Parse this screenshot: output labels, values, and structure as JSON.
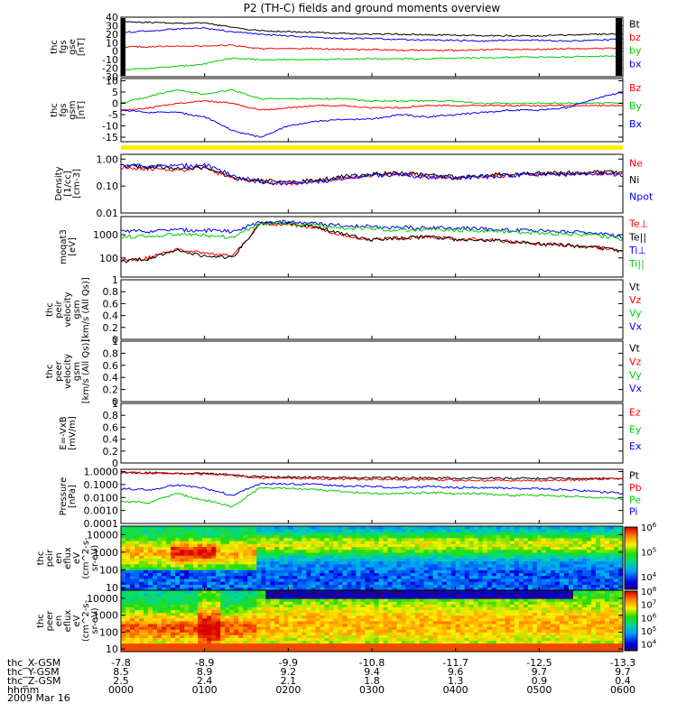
{
  "title": "P2 (TH-C) fields and ground moments overview",
  "chart_data": [
    {
      "type": "line",
      "id": "fgs_gse",
      "ylabel_lines": [
        "thc",
        "fgs",
        "gse",
        "[nT]"
      ],
      "ylim": [
        -30,
        40
      ],
      "yticks": [
        40,
        30,
        20,
        10,
        0,
        -10,
        -20,
        -30
      ],
      "legend": [
        {
          "name": "Bt",
          "color": "#000000"
        },
        {
          "name": "bz",
          "color": "#ff0000"
        },
        {
          "name": "by",
          "color": "#00cc00"
        },
        {
          "name": "bx",
          "color": "#0000ff"
        }
      ],
      "series": [
        {
          "name": "Bt",
          "color": "#000000",
          "values": [
            35,
            34,
            33,
            33,
            28,
            24,
            23,
            22,
            21,
            20,
            20,
            19,
            19,
            18,
            18,
            18,
            19,
            20,
            20
          ]
        },
        {
          "name": "bz",
          "color": "#ff0000",
          "values": [
            5,
            5,
            6,
            6,
            7,
            3,
            3,
            3,
            2,
            2,
            1,
            1,
            1,
            2,
            2,
            2,
            3,
            3,
            3
          ]
        },
        {
          "name": "by",
          "color": "#00cc00",
          "values": [
            -22,
            -20,
            -18,
            -15,
            -8,
            -10,
            -10,
            -10,
            -9,
            -9,
            -9,
            -9,
            -8,
            -8,
            -7,
            -7,
            -7,
            -6,
            -6
          ]
        },
        {
          "name": "bx",
          "color": "#0000ff",
          "values": [
            22,
            24,
            26,
            27,
            23,
            20,
            18,
            16,
            15,
            15,
            14,
            13,
            13,
            12,
            13,
            13,
            12,
            13,
            14
          ]
        }
      ]
    },
    {
      "type": "line",
      "id": "fgs_gsm",
      "ylabel_lines": [
        "thc",
        "fgs",
        "gsm",
        "[nT]"
      ],
      "ylim": [
        -17,
        11
      ],
      "yticks": [
        10,
        5,
        0,
        -5,
        -10,
        -15
      ],
      "legend": [
        {
          "name": "Bz",
          "color": "#ff0000"
        },
        {
          "name": "By",
          "color": "#00cc00"
        },
        {
          "name": "Bx",
          "color": "#0000ff"
        }
      ],
      "series": [
        {
          "name": "Bz",
          "color": "#ff0000",
          "values": [
            -3,
            -2,
            0,
            1,
            0,
            -3,
            -2,
            -1,
            -1,
            -2,
            -2,
            -1,
            -1,
            -1,
            -1,
            -1,
            -1,
            -1,
            -1
          ]
        },
        {
          "name": "By",
          "color": "#00cc00",
          "values": [
            0,
            3,
            6,
            4,
            6,
            2,
            2,
            2,
            2,
            1,
            1,
            1,
            1,
            0,
            0,
            0,
            0,
            0,
            0
          ]
        },
        {
          "name": "Bx",
          "color": "#0000ff",
          "values": [
            -3,
            -4,
            -4,
            -6,
            -12,
            -15,
            -10,
            -8,
            -7,
            -7,
            -5,
            -6,
            -5,
            -4,
            -3,
            -3,
            -2,
            2,
            5
          ]
        }
      ]
    },
    {
      "type": "line",
      "id": "density",
      "yscale": "log",
      "ylabel_lines": [
        "Density",
        "[1/cc]",
        "[cm-3]"
      ],
      "ylim": [
        0.01,
        1.5
      ],
      "yticks": [
        1.0,
        0.1,
        0.01
      ],
      "ytick_labels": [
        "1.00",
        "0.10",
        "0.01"
      ],
      "legend": [
        {
          "name": "Ne",
          "color": "#ff0000"
        },
        {
          "name": "Ni",
          "color": "#000000"
        },
        {
          "name": "Npot",
          "color": "#0000ff"
        }
      ],
      "series": [
        {
          "name": "Ne",
          "color": "#ff0000",
          "values": [
            0.5,
            0.45,
            0.4,
            0.45,
            0.2,
            0.15,
            0.12,
            0.15,
            0.2,
            0.25,
            0.28,
            0.22,
            0.2,
            0.22,
            0.25,
            0.28,
            0.28,
            0.3,
            0.28
          ]
        },
        {
          "name": "Ni",
          "color": "#000000",
          "values": [
            0.55,
            0.5,
            0.45,
            0.5,
            0.2,
            0.16,
            0.14,
            0.16,
            0.22,
            0.27,
            0.3,
            0.25,
            0.22,
            0.25,
            0.27,
            0.3,
            0.3,
            0.32,
            0.3
          ]
        },
        {
          "name": "Npot",
          "color": "#0000ff",
          "values": [
            0.6,
            0.55,
            0.55,
            0.6,
            0.25,
            0.14,
            0.12,
            0.14,
            0.2,
            0.25,
            0.27,
            0.22,
            0.2,
            0.22,
            0.25,
            0.27,
            0.27,
            0.28,
            0.26
          ]
        }
      ]
    },
    {
      "type": "line",
      "id": "temperature",
      "yscale": "log",
      "ylabel_lines": [
        "moqat3",
        "[eV]"
      ],
      "ylim": [
        15,
        6000
      ],
      "yticks": [
        1000,
        100
      ],
      "ytick_labels": [
        "1000",
        "100"
      ],
      "legend": [
        {
          "name": "Te⊥",
          "color": "#ff0000"
        },
        {
          "name": "Te||",
          "color": "#000000"
        },
        {
          "name": "Ti⊥",
          "color": "#0000ff"
        },
        {
          "name": "Ti||",
          "color": "#00cc00"
        }
      ],
      "series": [
        {
          "name": "Te⊥",
          "color": "#ff0000",
          "values": [
            80,
            100,
            250,
            150,
            120,
            3000,
            2800,
            2000,
            900,
            600,
            700,
            800,
            650,
            600,
            500,
            400,
            350,
            300,
            200
          ]
        },
        {
          "name": "Te||",
          "color": "#000000",
          "values": [
            70,
            90,
            220,
            120,
            100,
            3200,
            3000,
            2200,
            1000,
            600,
            700,
            800,
            650,
            600,
            500,
            400,
            350,
            280,
            180
          ]
        },
        {
          "name": "Ti⊥",
          "color": "#0000ff",
          "values": [
            1500,
            1400,
            1600,
            1500,
            1400,
            3500,
            3500,
            3000,
            2500,
            2200,
            2000,
            2000,
            1900,
            1800,
            1600,
            1500,
            1300,
            1200,
            800
          ]
        },
        {
          "name": "Ti||",
          "color": "#00cc00",
          "values": [
            800,
            900,
            1000,
            900,
            800,
            3000,
            3000,
            2500,
            2000,
            1800,
            1600,
            1700,
            1600,
            1500,
            1300,
            1200,
            1100,
            1000,
            600
          ]
        }
      ]
    },
    {
      "type": "line",
      "id": "peir_velocity",
      "ylabel_lines": [
        "thc",
        "peir",
        "velocity",
        "gsm",
        "[km/s (All Qs)]"
      ],
      "ylim": [
        0,
        1
      ],
      "yticks": [
        1.0,
        0.8,
        0.6,
        0.4,
        0.2,
        0.0
      ],
      "legend": [
        {
          "name": "Vt",
          "color": "#000000"
        },
        {
          "name": "Vz",
          "color": "#ff0000"
        },
        {
          "name": "Vy",
          "color": "#00cc00"
        },
        {
          "name": "Vx",
          "color": "#0000ff"
        }
      ],
      "series": []
    },
    {
      "type": "line",
      "id": "peer_velocity",
      "ylabel_lines": [
        "thc",
        "peer",
        "velocity",
        "gsm",
        "[km/s (All Qs)]"
      ],
      "ylim": [
        0,
        1
      ],
      "yticks": [
        1.0,
        0.8,
        0.6,
        0.4,
        0.2,
        0.0
      ],
      "legend": [
        {
          "name": "Vt",
          "color": "#000000"
        },
        {
          "name": "Vz",
          "color": "#ff0000"
        },
        {
          "name": "Vy",
          "color": "#00cc00"
        },
        {
          "name": "Vx",
          "color": "#0000ff"
        }
      ],
      "series": []
    },
    {
      "type": "line",
      "id": "efield",
      "ylabel_lines": [
        "E=-VxB",
        "[mV/m]"
      ],
      "ylim": [
        0,
        1
      ],
      "yticks": [
        1.0,
        0.8,
        0.6,
        0.4,
        0.2,
        0.0
      ],
      "legend": [
        {
          "name": "Ez",
          "color": "#ff0000"
        },
        {
          "name": "Ey",
          "color": "#00cc00"
        },
        {
          "name": "Ex",
          "color": "#0000ff"
        }
      ],
      "series": []
    },
    {
      "type": "line",
      "id": "pressure",
      "yscale": "log",
      "ylabel_lines": [
        "Pressure",
        "[nPa]"
      ],
      "ylim": [
        0.0001,
        1.5
      ],
      "yticks": [
        1.0,
        0.1,
        0.01,
        0.001,
        0.0001
      ],
      "ytick_labels": [
        "1.0000",
        "0.1000",
        "0.0100",
        "0.0010",
        "0.0001"
      ],
      "legend": [
        {
          "name": "Pt",
          "color": "#000000"
        },
        {
          "name": "Pb",
          "color": "#ff0000"
        },
        {
          "name": "Pe",
          "color": "#00cc00"
        },
        {
          "name": "Pi",
          "color": "#0000ff"
        }
      ],
      "series": [
        {
          "name": "Pt",
          "color": "#000000",
          "values": [
            0.9,
            0.8,
            0.75,
            0.7,
            0.55,
            0.4,
            0.38,
            0.36,
            0.35,
            0.34,
            0.33,
            0.32,
            0.31,
            0.3,
            0.3,
            0.3,
            0.3,
            0.29,
            0.28
          ]
        },
        {
          "name": "Pb",
          "color": "#ff0000",
          "values": [
            0.85,
            0.75,
            0.7,
            0.65,
            0.5,
            0.32,
            0.3,
            0.28,
            0.26,
            0.25,
            0.24,
            0.23,
            0.22,
            0.21,
            0.2,
            0.2,
            0.22,
            0.25,
            0.27
          ]
        },
        {
          "name": "Pe",
          "color": "#00cc00",
          "values": [
            0.005,
            0.004,
            0.02,
            0.006,
            0.002,
            0.06,
            0.05,
            0.04,
            0.03,
            0.02,
            0.02,
            0.025,
            0.02,
            0.02,
            0.015,
            0.015,
            0.012,
            0.01,
            0.008
          ]
        },
        {
          "name": "Pi",
          "color": "#0000ff",
          "values": [
            0.05,
            0.04,
            0.09,
            0.05,
            0.015,
            0.12,
            0.11,
            0.1,
            0.08,
            0.07,
            0.06,
            0.07,
            0.06,
            0.06,
            0.05,
            0.05,
            0.04,
            0.03,
            0.02
          ]
        }
      ]
    },
    {
      "type": "heatmap",
      "id": "peir_spectrogram",
      "yscale": "log",
      "ylabel_lines": [
        "thc",
        "peir",
        "en",
        "eflux",
        "eV",
        "(cm^2-s-",
        "sr-eV)"
      ],
      "ylim": [
        7,
        30000
      ],
      "yticks": [
        10000,
        1000,
        100,
        10
      ],
      "ytick_labels": [
        "10000",
        "1000",
        "100",
        "10"
      ],
      "colorbar": {
        "range_exp": [
          3.5,
          6
        ],
        "tick_exp": [
          6,
          5,
          4
        ],
        "tick_labels": [
          "10^6",
          "10^5",
          "10^4"
        ]
      }
    },
    {
      "type": "heatmap",
      "id": "peer_spectrogram",
      "yscale": "log",
      "ylabel_lines": [
        "thc",
        "peer",
        "en",
        "eflux",
        "eV",
        "(cm^2-s-",
        "sr-eV)"
      ],
      "ylim": [
        7,
        30000
      ],
      "yticks": [
        10000,
        1000,
        100,
        10
      ],
      "ytick_labels": [
        "10000",
        "1000",
        "100",
        "10"
      ],
      "colorbar": {
        "range_exp": [
          3.5,
          8
        ],
        "tick_exp": [
          8,
          7,
          6,
          5,
          4
        ],
        "tick_labels": [
          "10^8",
          "10^7",
          "10^6",
          "10^5",
          "10^4"
        ]
      }
    }
  ],
  "x_axis": {
    "tick_rows": [
      {
        "label": "thc_X-GSM",
        "values": [
          "-7.8",
          "-8.9",
          "-9.9",
          "-10.8",
          "-11.7",
          "-12.5",
          "-13.3"
        ]
      },
      {
        "label": "thc_Y-GSM",
        "values": [
          "8.5",
          "8.9",
          "9.2",
          "9.4",
          "9.6",
          "9.7",
          "9.7"
        ]
      },
      {
        "label": "thc_Z-GSM",
        "values": [
          "2.5",
          "2.4",
          "2.1",
          "1.8",
          "1.3",
          "0.9",
          "0.4"
        ]
      },
      {
        "label": "hhmm",
        "values": [
          "0000",
          "0100",
          "0200",
          "0300",
          "0400",
          "0500",
          "0600"
        ]
      }
    ],
    "date": "2009 Mar 16"
  }
}
